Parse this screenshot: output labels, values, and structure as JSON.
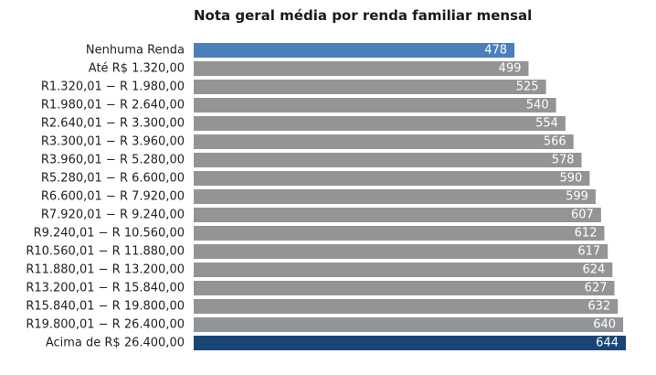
{
  "chart_data": {
    "type": "bar",
    "orientation": "horizontal",
    "title": "Nota geral média por renda familiar mensal",
    "xlabel": "",
    "ylabel": "",
    "grid": false,
    "categories": [
      "Nenhuma Renda",
      "Até R$ 1.320,00",
      "R1.320,01 − R 1.980,00",
      "R1.980,01 − R 2.640,00",
      "R2.640,01 − R 3.300,00",
      "R3.300,01 − R 3.960,00",
      "R3.960,01 − R 5.280,00",
      "R5.280,01 − R 6.600,00",
      "R6.600,01 − R 7.920,00",
      "R7.920,01 − R 9.240,00",
      "R9.240,01 − R 10.560,00",
      "R10.560,01 − R 11.880,00",
      "R11.880,01 − R 13.200,00",
      "R13.200,01 − R 15.840,00",
      "R15.840,01 − R 19.800,00",
      "R19.800,01 − R 26.400,00",
      "Acima de R$ 26.400,00"
    ],
    "values": [
      478,
      499,
      525,
      540,
      554,
      566,
      578,
      590,
      599,
      607,
      612,
      617,
      624,
      627,
      632,
      640,
      644
    ],
    "xlim": [
      0,
      644
    ],
    "colors": {
      "lowest": "#4a7fbb",
      "default": "#939496",
      "highest": "#1a4677"
    }
  }
}
